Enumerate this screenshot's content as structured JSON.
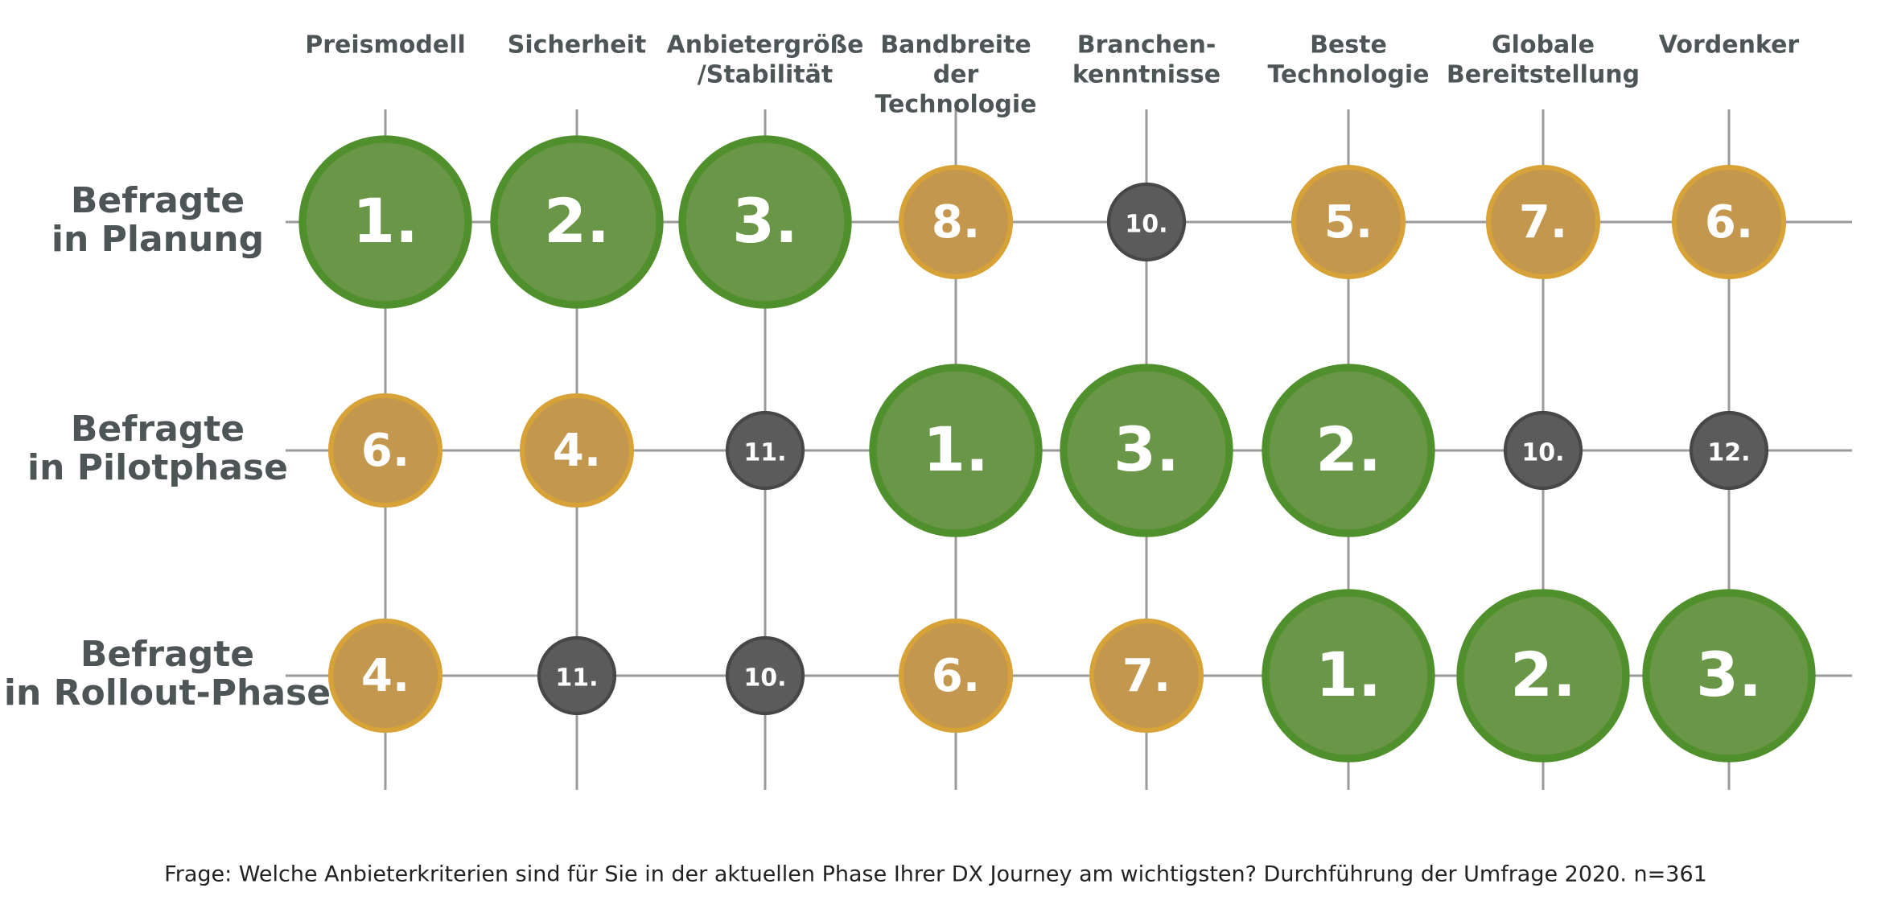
{
  "columns": [
    [
      "Preismodell"
    ],
    [
      "Sicherheit"
    ],
    [
      "Anbietergröße",
      "/Stabilität"
    ],
    [
      "Bandbreite",
      "der",
      "Technologie"
    ],
    [
      "Branchen-",
      "kenntnisse"
    ],
    [
      "Beste",
      "Technologie"
    ],
    [
      "Globale",
      "Bereitstellung"
    ],
    [
      "Vordenker"
    ]
  ],
  "rows": [
    {
      "label": [
        "Befragte",
        "in Planung"
      ],
      "cells": [
        {
          "text": "1.",
          "color": "#6a9647"
        },
        {
          "text": "2.",
          "color": "#6a9647"
        },
        {
          "text": "3.",
          "color": "#6a9647"
        },
        {
          "text": "8.",
          "color": "#c4974e"
        },
        {
          "text": "10.",
          "color": "#5b5b5b"
        },
        {
          "text": "5.",
          "color": "#c4974e"
        },
        {
          "text": "7.",
          "color": "#c4974e"
        },
        {
          "text": "6.",
          "color": "#c4974e"
        }
      ]
    },
    {
      "label": [
        "Befragte",
        "in Pilotphase"
      ],
      "cells": [
        {
          "text": "6.",
          "color": "#c4974e"
        },
        {
          "text": "4.",
          "color": "#c4974e"
        },
        {
          "text": "11.",
          "color": "#5b5b5b"
        },
        {
          "text": "1.",
          "color": "#6a9647"
        },
        {
          "text": "3.",
          "color": "#6a9647"
        },
        {
          "text": "2.",
          "color": "#6a9647"
        },
        {
          "text": "10.",
          "color": "#5b5b5b"
        },
        {
          "text": "12.",
          "color": "#5b5b5b"
        }
      ]
    },
    {
      "label": [
        "Befragte",
        "in Rollout-Phase"
      ],
      "cells": [
        {
          "text": "4.",
          "color": "#c4974e"
        },
        {
          "text": "11.",
          "color": "#5b5b5b"
        },
        {
          "text": "10.",
          "color": "#5b5b5b"
        },
        {
          "text": "6.",
          "color": "#c4974e"
        },
        {
          "text": "7.",
          "color": "#c4974e"
        },
        {
          "text": "1.",
          "color": "#6a9647"
        },
        {
          "text": "2.",
          "color": "#6a9647"
        },
        {
          "text": "3.",
          "color": "#6a9647"
        }
      ]
    }
  ],
  "footnote": "Frage: Welche Anbieterkriterien sind für Sie in der aktuellen Phase Ihrer DX Journey am wichtigsten? Durchführung der Umfrage 2020. n=361"
}
